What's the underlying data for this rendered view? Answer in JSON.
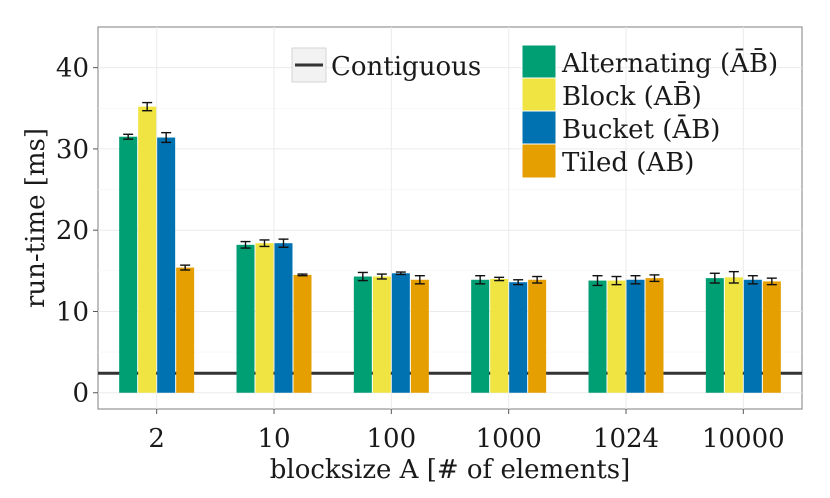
{
  "chart_data": {
    "type": "bar",
    "xlabel": "blocksize A [# of elements]",
    "ylabel": "run-time [ms]",
    "ylim": [
      -2,
      45
    ],
    "yticks": [
      0,
      10,
      20,
      30,
      40
    ],
    "categories": [
      "2",
      "10",
      "100",
      "1000",
      "1024",
      "10000"
    ],
    "series": [
      {
        "name": "Alternating (ĀB̄)",
        "color": "#009E73",
        "values": [
          31.5,
          18.2,
          14.3,
          13.9,
          13.8,
          14.1
        ],
        "errors": [
          0.3,
          0.4,
          0.5,
          0.5,
          0.6,
          0.6
        ]
      },
      {
        "name": "Block (AB̄)",
        "color": "#F0E442",
        "values": [
          35.2,
          18.4,
          14.3,
          14.0,
          13.8,
          14.2
        ],
        "errors": [
          0.5,
          0.4,
          0.3,
          0.2,
          0.5,
          0.7
        ]
      },
      {
        "name": "Bucket (ĀB)",
        "color": "#0072B2",
        "values": [
          31.4,
          18.4,
          14.7,
          13.6,
          13.9,
          13.9
        ],
        "errors": [
          0.6,
          0.5,
          0.15,
          0.3,
          0.5,
          0.5
        ]
      },
      {
        "name": "Tiled (AB)",
        "color": "#E69F00",
        "values": [
          15.4,
          14.5,
          13.9,
          13.9,
          14.1,
          13.7
        ],
        "errors": [
          0.3,
          0.1,
          0.5,
          0.4,
          0.4,
          0.4
        ]
      }
    ],
    "reference_line": {
      "name": "Contiguous",
      "value": 2.4,
      "color": "#333333"
    },
    "legend": {
      "position": "top-right"
    },
    "grid": true
  }
}
